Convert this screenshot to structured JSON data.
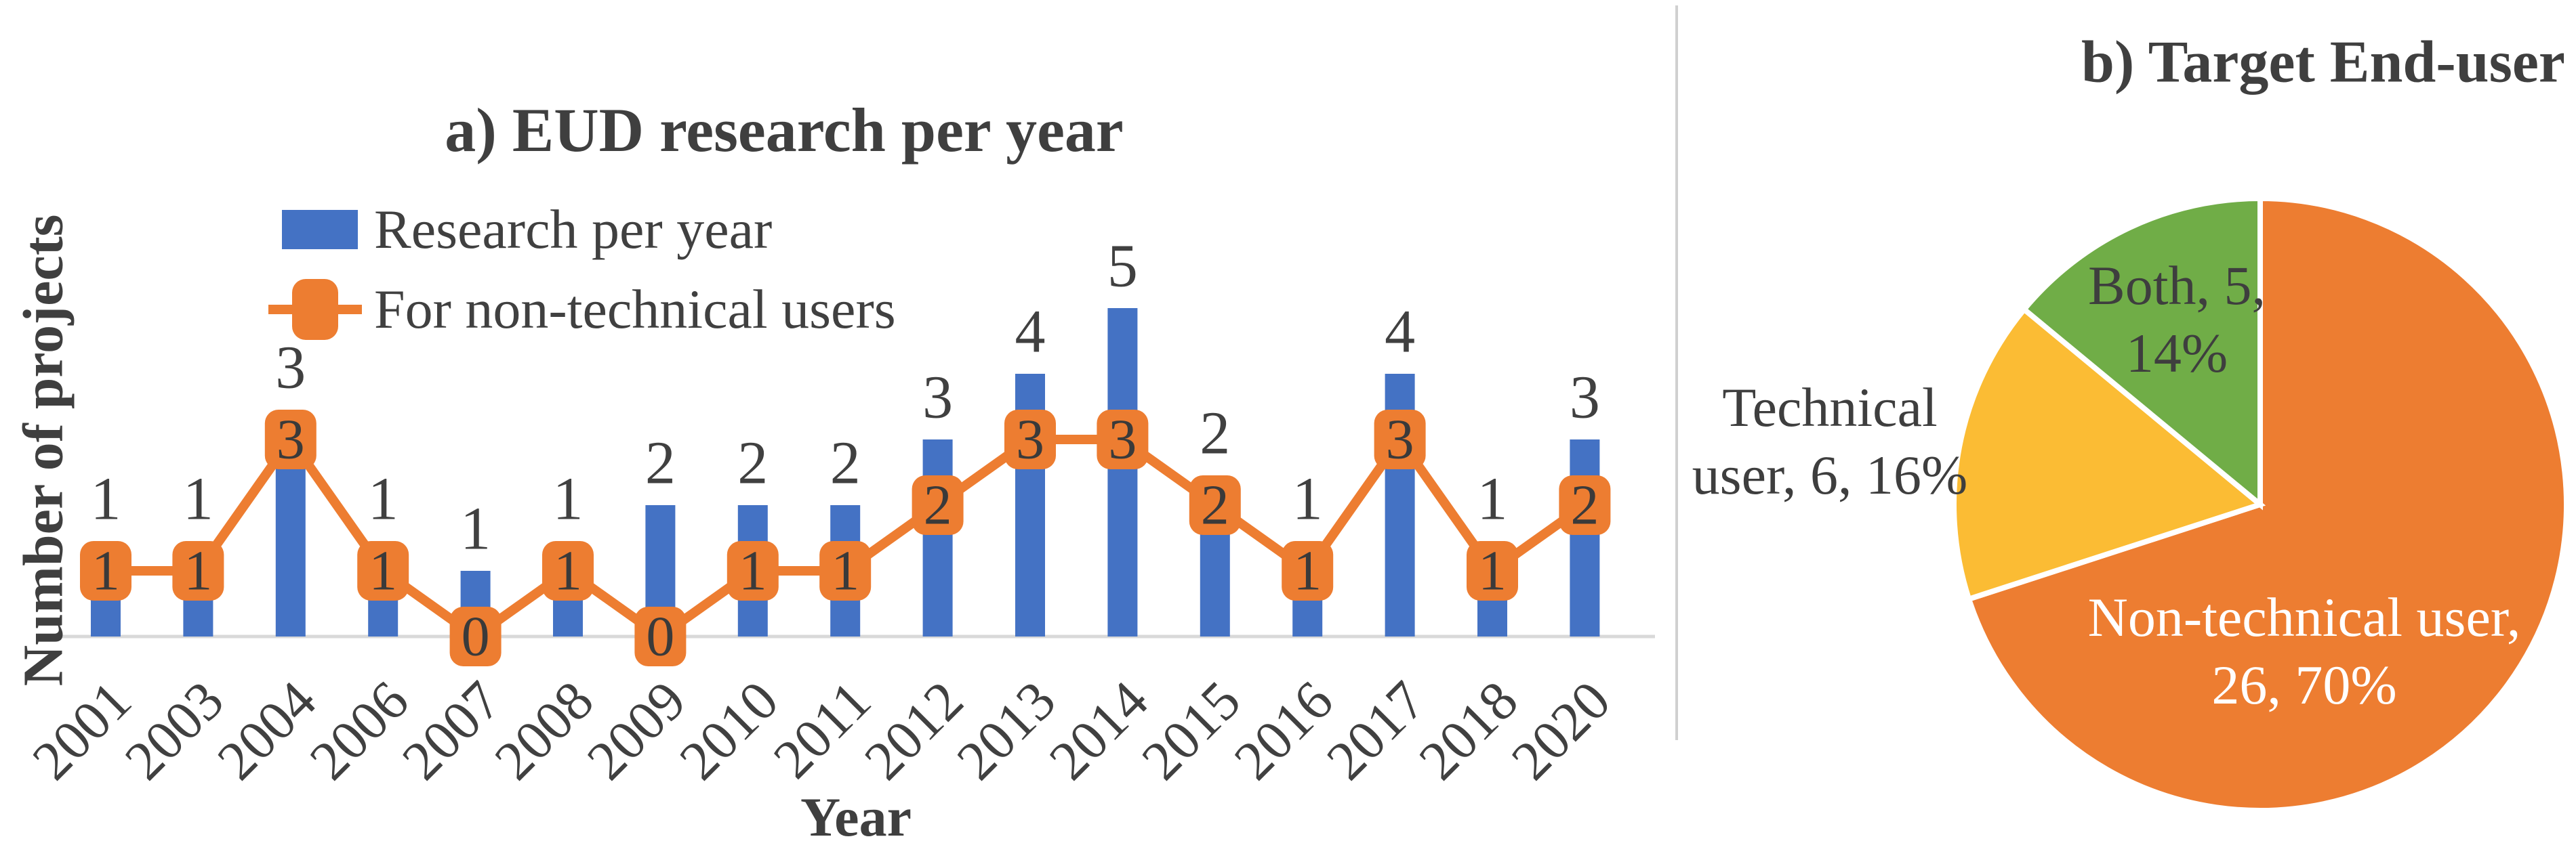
{
  "figure": {
    "panel_a": {
      "title": "a) EUD research per year",
      "x_axis_title": "Year",
      "y_axis_title": "Number of projects"
    },
    "panel_b": {
      "title": "b) Target End-user"
    }
  },
  "chart_data": [
    {
      "type": "bar",
      "title": "a) EUD research per year",
      "xlabel": "Year",
      "ylabel": "Number of projects",
      "categories": [
        "2001",
        "2003",
        "2004",
        "2006",
        "2007",
        "2008",
        "2009",
        "2010",
        "2011",
        "2012",
        "2013",
        "2014",
        "2015",
        "2016",
        "2017",
        "2018",
        "2020"
      ],
      "series": [
        {
          "name": "Research per year",
          "type": "bar",
          "color": "#4472C4",
          "values": [
            1,
            1,
            3,
            1,
            1,
            1,
            2,
            2,
            2,
            3,
            4,
            5,
            2,
            1,
            4,
            1,
            3
          ]
        },
        {
          "name": "For non-technical users",
          "type": "line",
          "color": "#ED7D31",
          "marker": "rounded-square",
          "values": [
            1,
            1,
            3,
            1,
            0,
            1,
            0,
            1,
            1,
            2,
            3,
            3,
            2,
            1,
            3,
            1,
            2
          ]
        }
      ],
      "ylim": [
        0,
        5
      ],
      "grid": false,
      "data_labels": true,
      "legend_position": "top-left-inside",
      "axis_line_color": "#D9D9D9",
      "label_color": "#404040"
    },
    {
      "type": "pie",
      "title": "b) Target End-user",
      "direction": "clockwise",
      "start_angle_deg": 0,
      "slices": [
        {
          "name": "Non-technical user",
          "value": 26,
          "pct": 70,
          "color": "#ED7D31",
          "label_lines": [
            "Non-technical user,",
            "26, 70%"
          ],
          "label_color": "#FFFFFF",
          "label_inside": true
        },
        {
          "name": "Technical user",
          "value": 6,
          "pct": 16,
          "color": "#FBBC34",
          "label_lines": [
            "Technical",
            "user, 6, 16%"
          ],
          "label_color": "#3E3E3E",
          "label_inside": false
        },
        {
          "name": "Both",
          "value": 5,
          "pct": 14,
          "color": "#70AD47",
          "label_lines": [
            "Both, 5,",
            "14%"
          ],
          "label_color": "#3E3E3E",
          "label_inside": true
        }
      ]
    }
  ]
}
